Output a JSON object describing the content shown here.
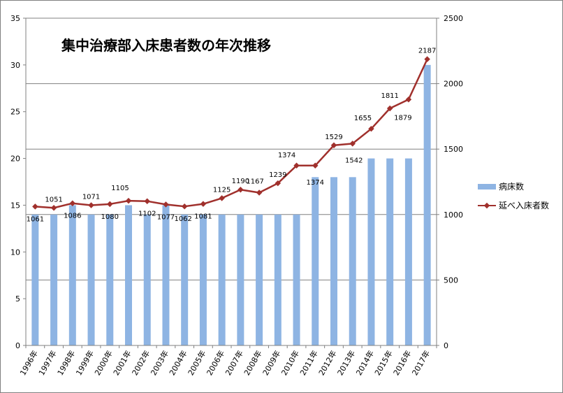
{
  "chart_data": {
    "type": "bar+line",
    "title": "集中治療部入床患者数の年次推移",
    "categories": [
      "1996年",
      "1997年",
      "1998年",
      "1999年",
      "2000年",
      "2001年",
      "2002年",
      "2003年",
      "2004年",
      "2005年",
      "2006年",
      "2007年",
      "2008年",
      "2009年",
      "2010年",
      "2011年",
      "2012年",
      "2013年",
      "2014年",
      "2015年",
      "2016年",
      "2017年"
    ],
    "series": [
      {
        "name": "病床数",
        "type": "bar",
        "axis": "left",
        "color": "#8EB4E3",
        "values": [
          14,
          14,
          15,
          14,
          14,
          15,
          14,
          15,
          14,
          14,
          14,
          14,
          14,
          14,
          14,
          18,
          18,
          18,
          20,
          20,
          20,
          30
        ]
      },
      {
        "name": "延べ入床者数",
        "type": "line",
        "axis": "right",
        "color": "#A0302C",
        "values": [
          1061,
          1051,
          1086,
          1071,
          1080,
          1105,
          1102,
          1077,
          1062,
          1081,
          1125,
          1190,
          1167,
          1239,
          1374,
          1374,
          1529,
          1542,
          1655,
          1811,
          1879,
          2187
        ]
      }
    ],
    "y_left": {
      "min": 0,
      "max": 35,
      "ticks": [
        "0",
        "5",
        "10",
        "15",
        "20",
        "25",
        "30",
        "35"
      ]
    },
    "y_right": {
      "min": 0,
      "max": 2500,
      "ticks": [
        "0",
        "500",
        "1000",
        "1500",
        "2000",
        "2500"
      ]
    },
    "grid": true,
    "legend": "right"
  }
}
